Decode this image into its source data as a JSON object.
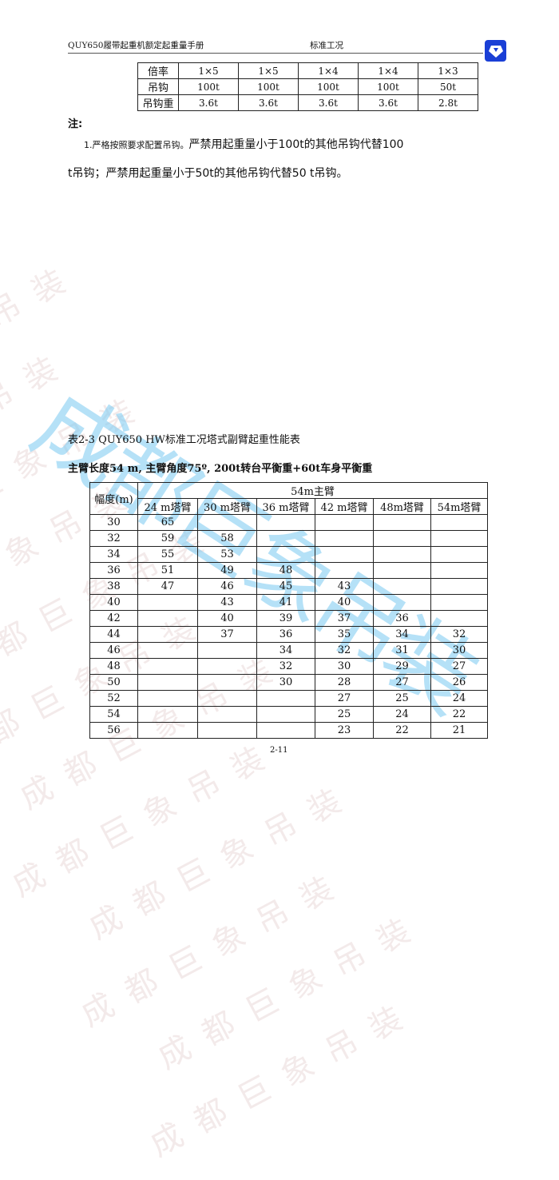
{
  "watermark": {
    "text": "成都巨象吊装",
    "color": "#8fd3f0"
  },
  "header": {
    "left": "QUY650履带起重机额定起重量手册",
    "center": "标准工况",
    "logo": "xcmg-logo"
  },
  "hook_table": {
    "rows": [
      {
        "label": "倍率",
        "values": [
          "1×5",
          "1×5",
          "1×4",
          "1×4",
          "1×3"
        ]
      },
      {
        "label": "吊钩",
        "values": [
          "100t",
          "100t",
          "100t",
          "100t",
          "50t"
        ]
      },
      {
        "label": "吊钩重",
        "values": [
          "3.6t",
          "3.6t",
          "3.6t",
          "3.6t",
          "2.8t"
        ]
      }
    ]
  },
  "note": {
    "label": "注:",
    "item_number": "1.",
    "line1_a": "严格按照要求配置吊钩。",
    "line1_b": "严禁用起重量小于100t的其他吊钩代替100",
    "line2": "t吊钩；严禁用起重量小于50t的其他吊钩代替50 t吊钩。"
  },
  "caption": "表2-3 QUY650 HW标准工况塔式副臂起重性能表",
  "subtitle": "主臂长度54 m, 主臂角度75º, 200t转台平衡重+60t车身平衡重",
  "load_table": {
    "radius_header": "幅度(m)",
    "group_header": "54m主臂",
    "columns": [
      "24 m塔臂",
      "30 m塔臂",
      "36 m塔臂",
      "42 m塔臂",
      "48m塔臂",
      "54m塔臂"
    ],
    "rows": [
      [
        "30",
        "65",
        "",
        "",
        "",
        "",
        ""
      ],
      [
        "32",
        "59",
        "58",
        "",
        "",
        "",
        ""
      ],
      [
        "34",
        "55",
        "53",
        "",
        "",
        "",
        ""
      ],
      [
        "36",
        "51",
        "49",
        "48",
        "",
        "",
        ""
      ],
      [
        "38",
        "47",
        "46",
        "45",
        "43",
        "",
        ""
      ],
      [
        "40",
        "",
        "43",
        "41",
        "40",
        "",
        ""
      ],
      [
        "42",
        "",
        "40",
        "39",
        "37",
        "36",
        ""
      ],
      [
        "44",
        "",
        "37",
        "36",
        "35",
        "34",
        "32"
      ],
      [
        "46",
        "",
        "",
        "34",
        "32",
        "31",
        "30"
      ],
      [
        "48",
        "",
        "",
        "32",
        "30",
        "29",
        "27"
      ],
      [
        "50",
        "",
        "",
        "30",
        "28",
        "27",
        "26"
      ],
      [
        "52",
        "",
        "",
        "",
        "27",
        "25",
        "24"
      ],
      [
        "54",
        "",
        "",
        "",
        "25",
        "24",
        "22"
      ],
      [
        "56",
        "",
        "",
        "",
        "23",
        "22",
        "21"
      ]
    ]
  },
  "page_number": "2-11"
}
